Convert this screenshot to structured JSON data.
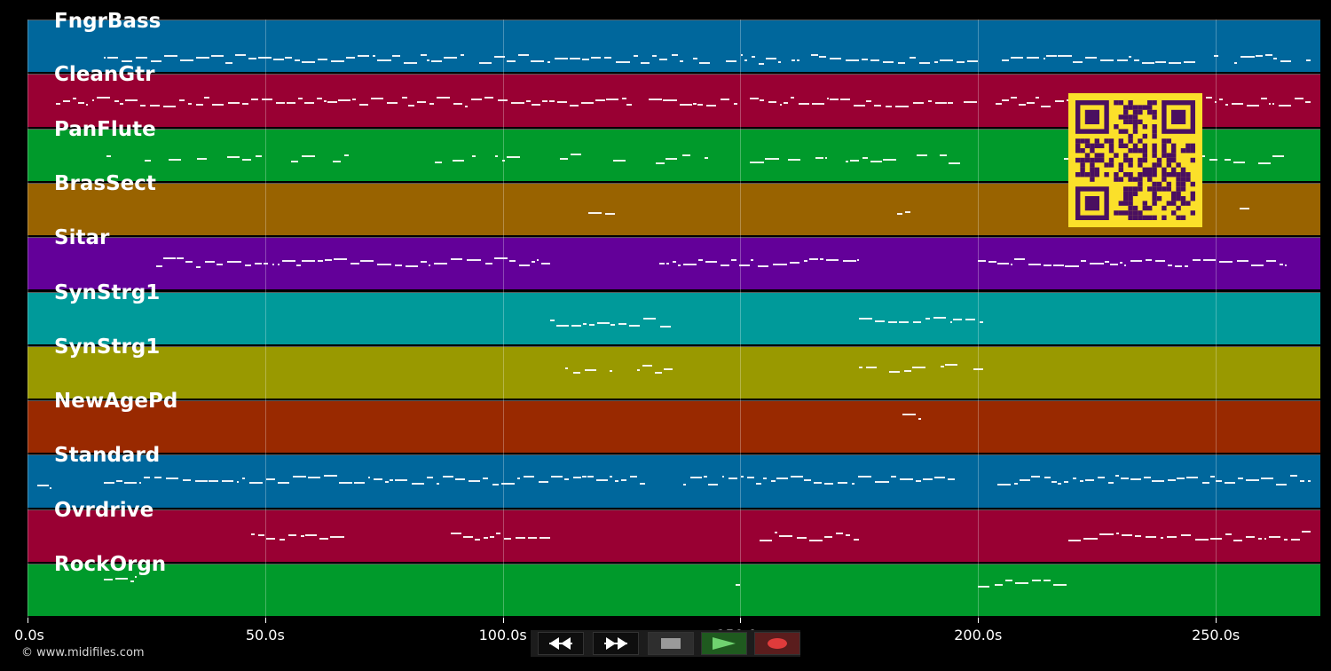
{
  "tracks": [
    {
      "name": "FngrBass",
      "color": "#00679c"
    },
    {
      "name": "CleanGtr",
      "color": "#990033"
    },
    {
      "name": "PanFlute",
      "color": "#009a2b"
    },
    {
      "name": "BrasSect",
      "color": "#996300"
    },
    {
      "name": "Sitar",
      "color": "#630099"
    },
    {
      "name": "SynStrg1",
      "color": "#009a9a"
    },
    {
      "name": "SynStrg1",
      "color": "#999900"
    },
    {
      "name": "NewAgePd",
      "color": "#992900"
    },
    {
      "name": "Standard",
      "color": "#00679c"
    },
    {
      "name": "Ovrdrive",
      "color": "#990033"
    },
    {
      "name": "RockOrgn",
      "color": "#009a2b"
    }
  ],
  "timeline": {
    "max_seconds": 272,
    "ticks": [
      {
        "value": 0,
        "label": "0.0s"
      },
      {
        "value": 50,
        "label": "50.0s"
      },
      {
        "value": 100,
        "label": "100.0s"
      },
      {
        "value": 150,
        "label": "150.0s"
      },
      {
        "value": 200,
        "label": "200.0s"
      },
      {
        "value": 250,
        "label": "250.0s"
      }
    ]
  },
  "copyright": "© www.midifiles.com",
  "controls": {
    "rewind_icon": "rewind-icon",
    "forward_icon": "fast-forward-icon",
    "stop_icon": "stop-icon",
    "play_icon": "play-icon",
    "record_icon": "record-icon",
    "play_color": "#6fd36f",
    "record_color": "#e03b3b"
  },
  "qr_code": {
    "fg": "#4a1060",
    "bg": "#fbe02a"
  }
}
